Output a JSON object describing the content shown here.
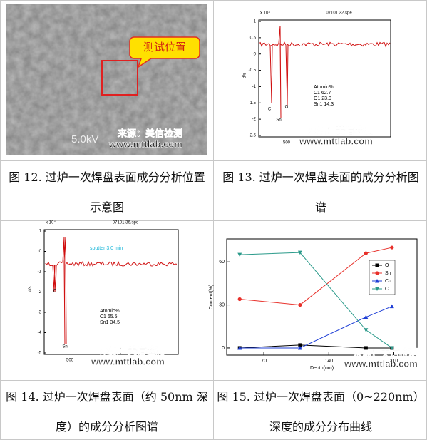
{
  "figures": [
    {
      "caption": "图 12. 过炉一次焊盘表面成分分析位置示意图",
      "callout": "测试位置",
      "scale_text": "5.0kV",
      "watermark": [
        "来源：美信检测",
        "www.mttlab.com"
      ]
    },
    {
      "caption": "图 13. 过炉一次焊盘表面的成分分析图谱",
      "spectrum": {
        "title": "07101 32.spe",
        "exponent": "x 10⁴",
        "yticks": [
          "1",
          "0.5",
          "0",
          "-0.5",
          "-1",
          "-1.5",
          "-2",
          "-2.5"
        ],
        "xtick": "500",
        "ylabel": "d/s",
        "peaks": [
          "C",
          "O",
          "Sn"
        ],
        "atomic": [
          "Atomic%",
          "C1  62.7",
          "O1  23.0",
          "Sn1  14.3"
        ]
      },
      "watermark": [
        "来源：美信检测",
        "www.mttlab.com"
      ]
    },
    {
      "caption": "图 14. 过炉一次焊盘表面（约 50nm 深度）的成分分析图谱",
      "spectrum": {
        "title": "07101 36.spe",
        "exponent": "x 10⁴",
        "yticks": [
          "1",
          "0",
          "-1",
          "-2",
          "-3",
          "-4",
          "-5"
        ],
        "xtick": "500",
        "ylabel": "d/s",
        "note": "sputter 3.0 min",
        "peaks": [
          "O",
          "Sn"
        ],
        "atomic": [
          "Atomic%",
          "C1  65.5",
          "Sn1  34.5"
        ]
      },
      "watermark": [
        "来源：美信检测",
        "www.mttlab.com"
      ]
    },
    {
      "caption": "图 15. 过炉一次焊盘表面（0~220nm）深度的成分分布曲线",
      "watermark": [
        "来源：美信检测",
        "www.mttlab.com"
      ]
    }
  ],
  "chart_data": {
    "type": "line",
    "x_label": "Depth(nm)",
    "y_label": "Content(%)",
    "x": [
      44,
      109,
      180,
      208
    ],
    "series": [
      {
        "name": "O",
        "color": "#000000",
        "marker": "square",
        "values": [
          0,
          2,
          0,
          0
        ]
      },
      {
        "name": "Sn",
        "color": "#e8312b",
        "marker": "circle",
        "values": [
          34,
          30,
          66,
          70
        ]
      },
      {
        "name": "Cu",
        "color": "#1f3fd6",
        "marker": "triangle",
        "values": [
          0,
          0,
          21.5,
          29
        ]
      },
      {
        "name": "C",
        "color": "#2a9a8a",
        "marker": "triangle-down",
        "values": [
          65,
          66.5,
          12.5,
          0
        ]
      }
    ],
    "xlim": [
      30,
      235
    ],
    "ylim": [
      -5,
      76
    ],
    "xticks": [
      70,
      140,
      210
    ],
    "yticks": [
      0,
      30,
      60
    ]
  }
}
